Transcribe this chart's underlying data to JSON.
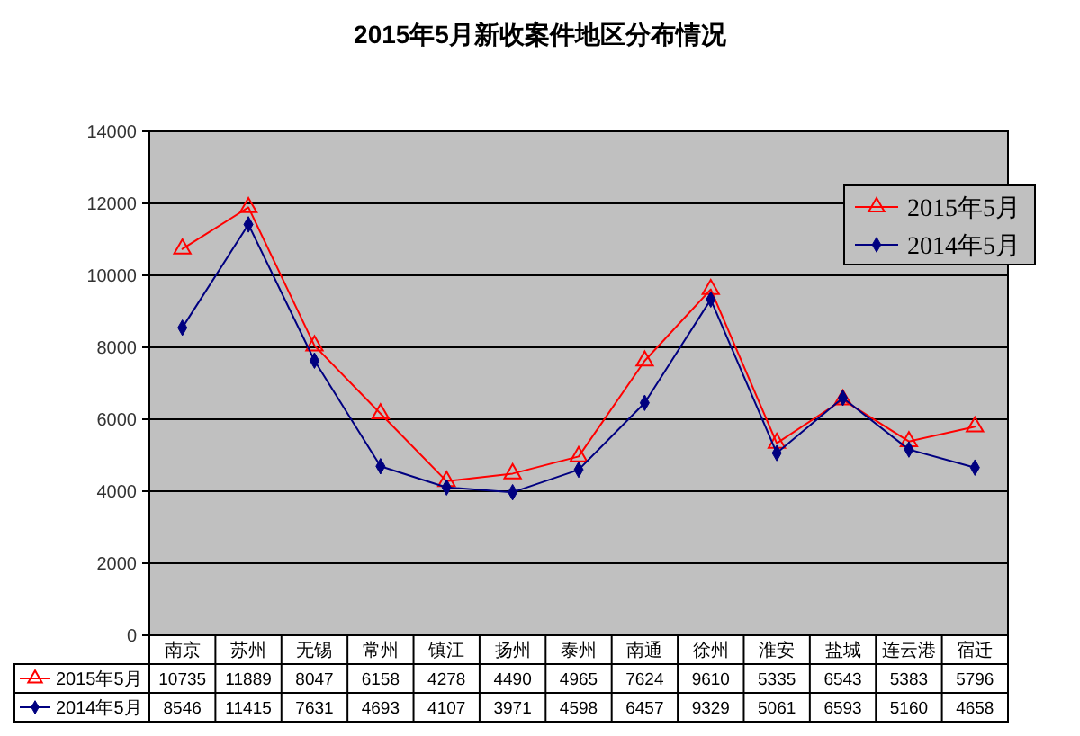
{
  "chart_data": {
    "type": "line",
    "title": "2015年5月新收案件地区分布情况",
    "categories": [
      "南京",
      "苏州",
      "无锡",
      "常州",
      "镇江",
      "扬州",
      "泰州",
      "南通",
      "徐州",
      "淮安",
      "盐城",
      "连云港",
      "宿迁"
    ],
    "series": [
      {
        "name": "2015年5月",
        "color": "#ff0000",
        "marker": "triangle",
        "values": [
          10735,
          11889,
          8047,
          6158,
          4278,
          4490,
          4965,
          7624,
          9610,
          5335,
          6543,
          5383,
          5796
        ]
      },
      {
        "name": "2014年5月",
        "color": "#000080",
        "marker": "diamond",
        "values": [
          8546,
          11415,
          7631,
          4693,
          4107,
          3971,
          4598,
          6457,
          9329,
          5061,
          6593,
          5160,
          4658
        ]
      }
    ],
    "ylim": [
      0,
      14000
    ],
    "yticks": [
      0,
      2000,
      4000,
      6000,
      8000,
      10000,
      12000,
      14000
    ],
    "grid": "y",
    "legend": "top right",
    "data_labels": true
  }
}
